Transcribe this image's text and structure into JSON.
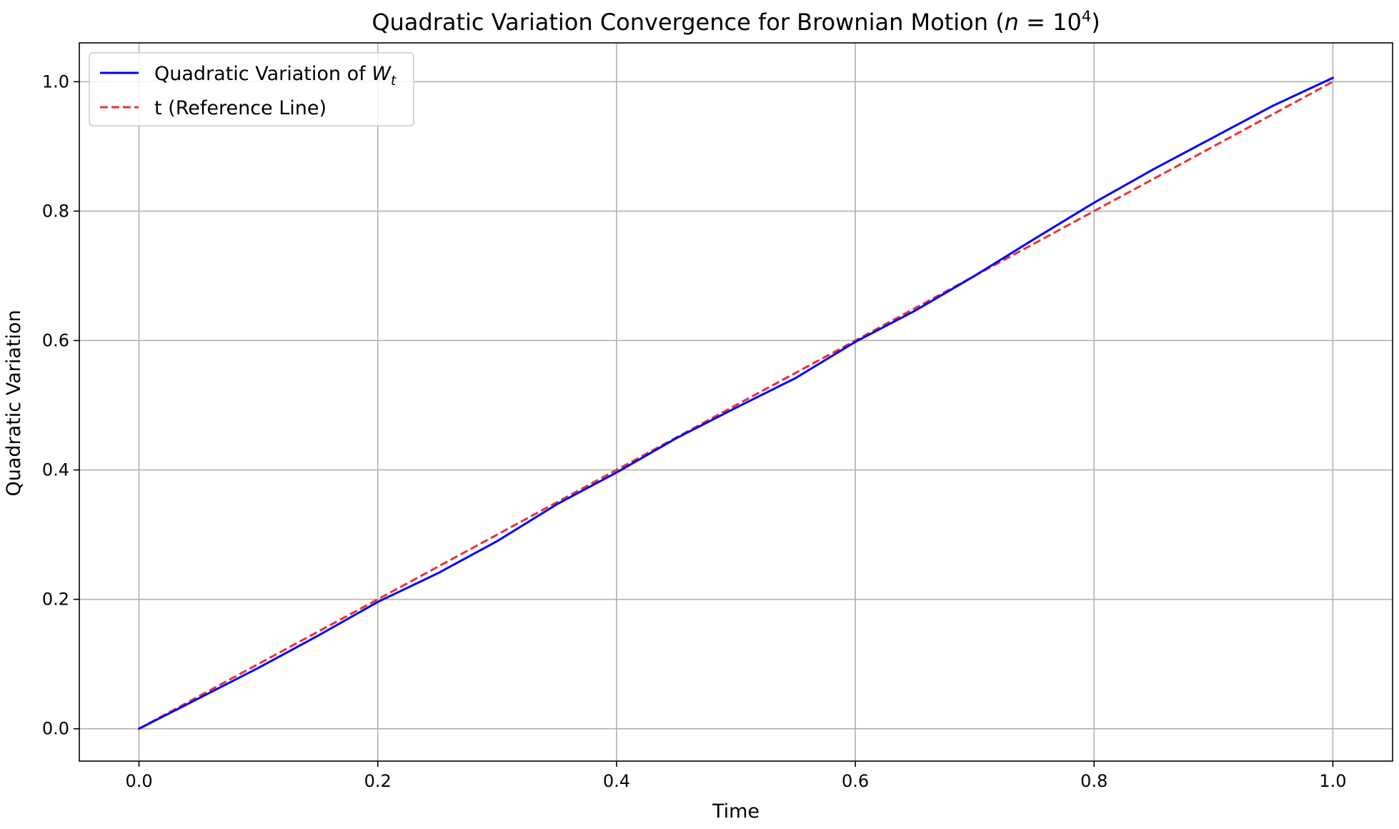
{
  "chart_data": {
    "type": "line",
    "title": "Quadratic Variation Convergence for Brownian Motion (",
    "title_n": "n",
    "title_eq": " = 10",
    "title_exp": "4",
    "title_close": ")",
    "xlabel": "Time",
    "ylabel": "Quadratic Variation",
    "xlim": [
      -0.05,
      1.05
    ],
    "ylim": [
      -0.05,
      1.06
    ],
    "xticks": [
      0.0,
      0.2,
      0.4,
      0.6,
      0.8,
      1.0
    ],
    "xtick_labels": [
      "0.0",
      "0.2",
      "0.4",
      "0.6",
      "0.8",
      "1.0"
    ],
    "yticks": [
      0.0,
      0.2,
      0.4,
      0.6,
      0.8,
      1.0
    ],
    "ytick_labels": [
      "0.0",
      "0.2",
      "0.4",
      "0.6",
      "0.8",
      "1.0"
    ],
    "grid": true,
    "legend_position": "top-left",
    "series": [
      {
        "name": "Quadratic Variation of ",
        "name_math": "W",
        "name_sub": "t",
        "color": "#0000ff",
        "style": "solid",
        "x": [
          0.0,
          0.05,
          0.1,
          0.15,
          0.2,
          0.25,
          0.3,
          0.35,
          0.4,
          0.45,
          0.5,
          0.55,
          0.6,
          0.65,
          0.7,
          0.75,
          0.8,
          0.85,
          0.9,
          0.95,
          1.0
        ],
        "y": [
          0.0,
          0.047,
          0.094,
          0.144,
          0.196,
          0.24,
          0.29,
          0.347,
          0.396,
          0.449,
          0.496,
          0.542,
          0.598,
          0.646,
          0.7,
          0.757,
          0.813,
          0.865,
          0.914,
          0.963,
          1.006
        ]
      },
      {
        "name": "t (Reference Line)",
        "color": "#e83232",
        "style": "dashed",
        "x": [
          0.0,
          1.0
        ],
        "y": [
          0.0,
          1.0
        ]
      }
    ]
  }
}
